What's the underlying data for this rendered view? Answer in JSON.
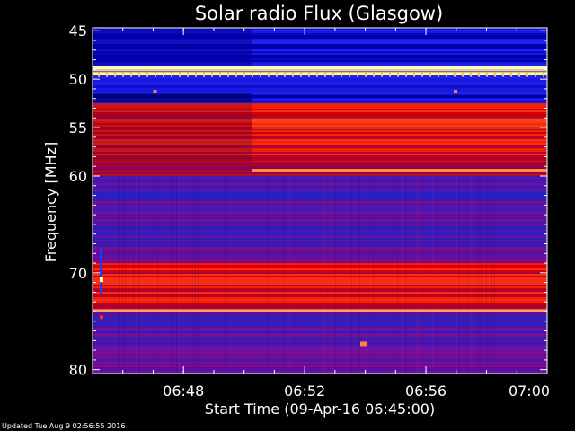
{
  "chart_data": {
    "type": "heatmap",
    "title": "Solar radio Flux (Glasgow)",
    "xlabel": "Start Time (09-Apr-16 06:45:00)",
    "ylabel": "Frequency [MHz]",
    "xlim": [
      "06:45:00",
      "07:00:00"
    ],
    "ylim": [
      45,
      80
    ],
    "y_inverted": true,
    "x_ticks": [
      "06:48",
      "06:52",
      "06:56",
      "07:00"
    ],
    "y_ticks": [
      45,
      50,
      55,
      60,
      70,
      80
    ],
    "colormap": [
      "#000080",
      "#0000ff",
      "#6a00a8",
      "#ff0000",
      "#ffff80"
    ],
    "bands": [
      {
        "f_start": 44.7,
        "f_end": 48.6,
        "level": "blue"
      },
      {
        "f_start": 48.6,
        "f_end": 49.2,
        "level": "hot"
      },
      {
        "f_start": 49.2,
        "f_end": 52.5,
        "level": "blue"
      },
      {
        "f_start": 52.5,
        "f_end": 58.5,
        "level": "red"
      },
      {
        "f_start": 58.5,
        "f_end": 60.0,
        "level": "red-dim"
      },
      {
        "f_start": 60.0,
        "f_end": 66.0,
        "level": "purple"
      },
      {
        "f_start": 66.0,
        "f_end": 69.0,
        "level": "purple"
      },
      {
        "f_start": 69.0,
        "f_end": 74.0,
        "level": "red"
      },
      {
        "f_start": 74.0,
        "f_end": 80.4,
        "level": "purple"
      }
    ],
    "lines": [
      {
        "freq": 49.4,
        "time_start": "06:45:00",
        "time_end": "07:00:00",
        "color": "#ffff80"
      },
      {
        "freq": 59.4,
        "time_start": "06:50:15",
        "time_end": "07:00:00",
        "color": "#ff9040"
      },
      {
        "freq": 73.9,
        "time_start": "06:45:00",
        "time_end": "07:00:00",
        "color": "#ffa060"
      }
    ],
    "colors": {
      "background": "#000000",
      "foreground": "#ffffff"
    }
  },
  "footer": {
    "updated": "Updated Tue Aug  9 02:56:55 2016"
  }
}
